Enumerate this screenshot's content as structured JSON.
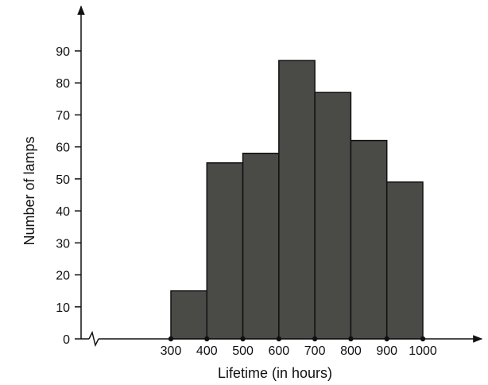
{
  "chart_data": {
    "type": "bar",
    "title": "",
    "xlabel": "Lifetime (in hours)",
    "ylabel": "Number of lamps",
    "bins": [
      {
        "from": 300,
        "to": 400,
        "value": 15
      },
      {
        "from": 400,
        "to": 500,
        "value": 55
      },
      {
        "from": 500,
        "to": 600,
        "value": 58
      },
      {
        "from": 600,
        "to": 700,
        "value": 87
      },
      {
        "from": 700,
        "to": 800,
        "value": 77
      },
      {
        "from": 800,
        "to": 900,
        "value": 62
      },
      {
        "from": 900,
        "to": 1000,
        "value": 49
      }
    ],
    "x_ticks": [
      "300",
      "400",
      "500",
      "600",
      "700",
      "800",
      "900",
      "1000"
    ],
    "y_ticks": [
      "0",
      "10",
      "20",
      "30",
      "40",
      "50",
      "60",
      "70",
      "80",
      "90"
    ],
    "xlim": [
      300,
      1000
    ],
    "ylim": [
      0,
      90
    ],
    "x_axis_break": true,
    "grid": false,
    "bar_color": "#4a4a47",
    "edge_color": "#111111"
  }
}
